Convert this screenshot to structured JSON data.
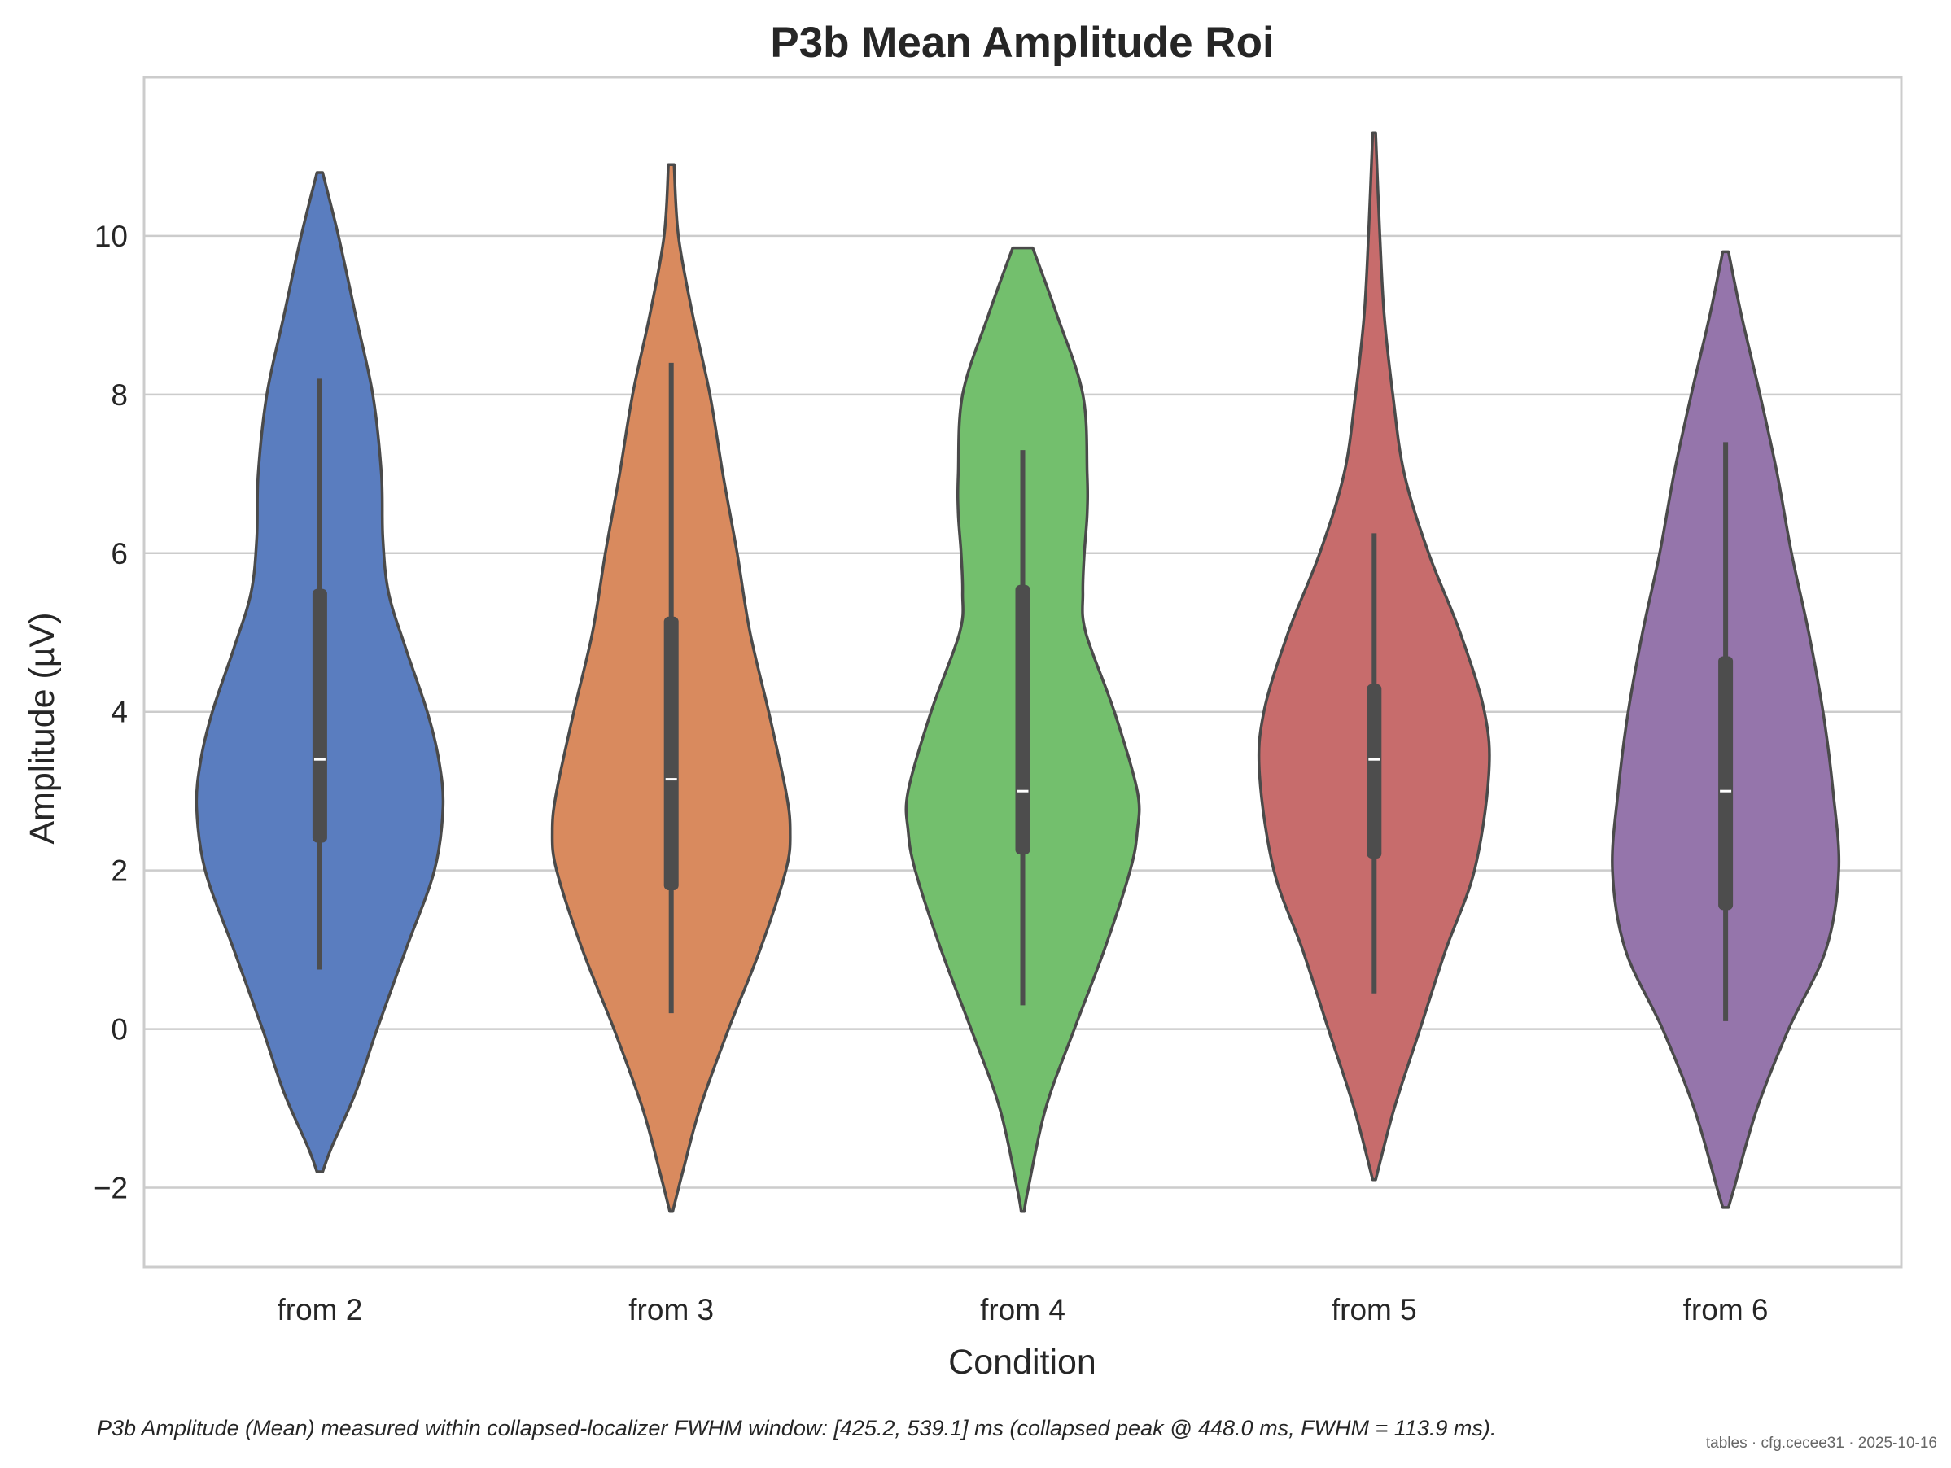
{
  "chart_data": {
    "type": "violin",
    "title": "P3b Mean Amplitude Roi",
    "xlabel": "Condition",
    "ylabel": "Amplitude (µV)",
    "ylim": [
      -3,
      12
    ],
    "yticks": [
      -2,
      0,
      2,
      4,
      6,
      8,
      10
    ],
    "ytick_labels": [
      "−2",
      "0",
      "2",
      "4",
      "6",
      "8",
      "10"
    ],
    "grid": "horizontal",
    "categories": [
      "from 2",
      "from 3",
      "from 4",
      "from 5",
      "from 6"
    ],
    "colors": [
      "#5a7dbf",
      "#d98a5e",
      "#73bf6d",
      "#c76c6c",
      "#9575ab"
    ],
    "outline_color": "#4a4a4a",
    "violins": [
      {
        "name": "from 2",
        "min": -1.8,
        "max": 10.8,
        "whisker_low": 0.75,
        "whisker_high": 8.2,
        "q1": 2.35,
        "median": 3.4,
        "q3": 5.55,
        "density": [
          [
            10.8,
            0.02
          ],
          [
            10.0,
            0.13
          ],
          [
            9.0,
            0.25
          ],
          [
            8.0,
            0.37
          ],
          [
            7.0,
            0.43
          ],
          [
            6.2,
            0.44
          ],
          [
            5.5,
            0.48
          ],
          [
            4.8,
            0.6
          ],
          [
            4.0,
            0.75
          ],
          [
            3.4,
            0.83
          ],
          [
            2.8,
            0.86
          ],
          [
            2.0,
            0.8
          ],
          [
            1.0,
            0.6
          ],
          [
            0.0,
            0.4
          ],
          [
            -0.8,
            0.25
          ],
          [
            -1.5,
            0.08
          ],
          [
            -1.8,
            0.02
          ]
        ]
      },
      {
        "name": "from 3",
        "min": -2.3,
        "max": 10.9,
        "whisker_low": 0.2,
        "whisker_high": 8.4,
        "q1": 1.75,
        "median": 3.15,
        "q3": 5.2,
        "density": [
          [
            10.9,
            0.02
          ],
          [
            10.0,
            0.05
          ],
          [
            9.0,
            0.15
          ],
          [
            8.0,
            0.27
          ],
          [
            7.0,
            0.36
          ],
          [
            6.0,
            0.46
          ],
          [
            5.0,
            0.55
          ],
          [
            4.0,
            0.68
          ],
          [
            3.0,
            0.8
          ],
          [
            2.5,
            0.83
          ],
          [
            2.0,
            0.8
          ],
          [
            1.0,
            0.62
          ],
          [
            0.0,
            0.4
          ],
          [
            -1.0,
            0.2
          ],
          [
            -1.8,
            0.08
          ],
          [
            -2.3,
            0.01
          ]
        ]
      },
      {
        "name": "from 4",
        "min": -2.3,
        "max": 9.85,
        "whisker_low": 0.3,
        "whisker_high": 7.3,
        "q1": 2.2,
        "median": 3.0,
        "q3": 5.6,
        "density": [
          [
            9.85,
            0.07
          ],
          [
            9.0,
            0.24
          ],
          [
            8.0,
            0.42
          ],
          [
            7.0,
            0.45
          ],
          [
            6.5,
            0.45
          ],
          [
            6.0,
            0.43
          ],
          [
            5.5,
            0.42
          ],
          [
            5.0,
            0.44
          ],
          [
            4.0,
            0.64
          ],
          [
            3.0,
            0.8
          ],
          [
            2.5,
            0.8
          ],
          [
            2.0,
            0.75
          ],
          [
            1.0,
            0.57
          ],
          [
            0.0,
            0.36
          ],
          [
            -1.0,
            0.16
          ],
          [
            -2.0,
            0.04
          ],
          [
            -2.3,
            0.01
          ]
        ]
      },
      {
        "name": "from 5",
        "min": -1.9,
        "max": 11.3,
        "whisker_low": 0.45,
        "whisker_high": 6.25,
        "q1": 2.15,
        "median": 3.4,
        "q3": 4.35,
        "density": [
          [
            11.3,
            0.01
          ],
          [
            10.0,
            0.04
          ],
          [
            9.0,
            0.07
          ],
          [
            8.0,
            0.13
          ],
          [
            7.0,
            0.21
          ],
          [
            6.0,
            0.38
          ],
          [
            5.0,
            0.6
          ],
          [
            4.0,
            0.77
          ],
          [
            3.2,
            0.8
          ],
          [
            2.0,
            0.7
          ],
          [
            1.0,
            0.5
          ],
          [
            0.0,
            0.32
          ],
          [
            -1.0,
            0.14
          ],
          [
            -1.9,
            0.01
          ]
        ]
      },
      {
        "name": "from 6",
        "min": -2.25,
        "max": 9.8,
        "whisker_low": 0.1,
        "whisker_high": 7.4,
        "q1": 1.5,
        "median": 3.0,
        "q3": 4.7,
        "density": [
          [
            9.8,
            0.02
          ],
          [
            9.0,
            0.11
          ],
          [
            8.0,
            0.24
          ],
          [
            7.0,
            0.36
          ],
          [
            6.0,
            0.46
          ],
          [
            5.0,
            0.58
          ],
          [
            4.0,
            0.68
          ],
          [
            3.0,
            0.75
          ],
          [
            2.0,
            0.79
          ],
          [
            1.0,
            0.7
          ],
          [
            0.0,
            0.44
          ],
          [
            -1.0,
            0.22
          ],
          [
            -2.0,
            0.06
          ],
          [
            -2.25,
            0.02
          ]
        ]
      }
    ]
  },
  "caption": "P3b Amplitude (Mean) measured within collapsed-localizer FWHM window: [425.2, 539.1] ms (collapsed peak @ 448.0 ms, FWHM = 113.9 ms).",
  "stamp": "tables · cfg.cecee31 · 2025-10-16"
}
